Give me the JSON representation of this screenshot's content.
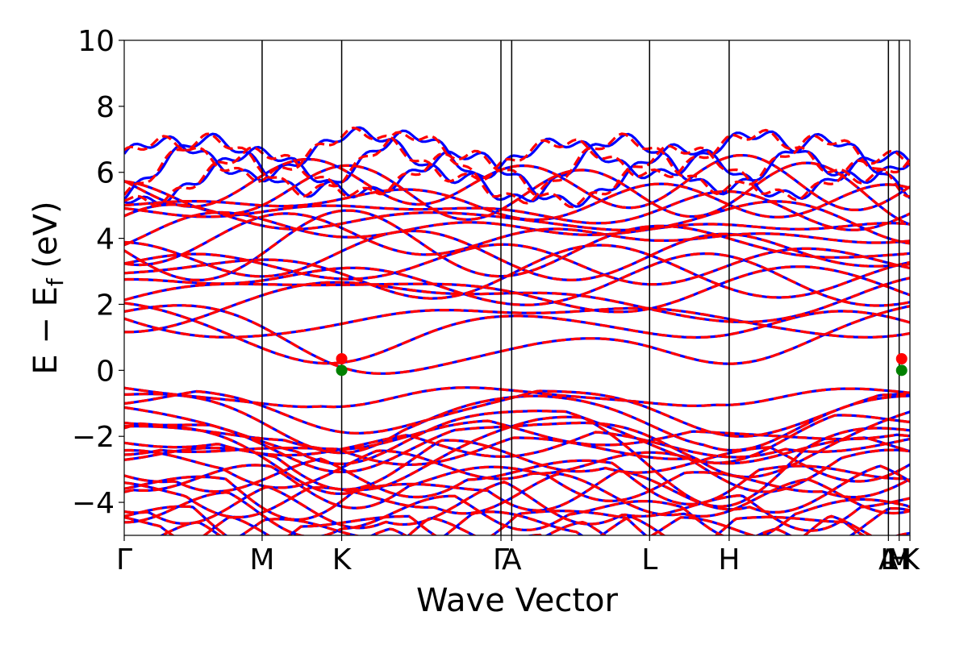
{
  "chart_data": {
    "type": "line",
    "xlabel": "Wave Vector",
    "ylabel_main": "E − E",
    "ylabel_sub": "f",
    "ylabel_unit": " (eV)",
    "ylim": [
      -5,
      10
    ],
    "yticks": [
      -4,
      -2,
      0,
      2,
      4,
      6,
      8,
      10
    ],
    "ytick_labels": [
      "−4",
      "−2",
      "0",
      "2",
      "4",
      "6",
      "8",
      "10"
    ],
    "kpoints": [
      {
        "label": "Γ",
        "x": 0.0
      },
      {
        "label": "M",
        "x": 1.0
      },
      {
        "label": "K",
        "x": 1.577
      },
      {
        "label": "Γ",
        "x": 2.732
      },
      {
        "label": "A",
        "x": 2.81
      },
      {
        "label": "L",
        "x": 3.81
      },
      {
        "label": "H",
        "x": 4.387
      },
      {
        "label": "A",
        "x": 5.542
      },
      {
        "label": "L",
        "x": 5.542
      },
      {
        "label": "M",
        "x": 5.62
      },
      {
        "label": "H",
        "x": 5.62
      },
      {
        "label": "K",
        "x": 5.698
      }
    ],
    "xlim": [
      0,
      5.698
    ],
    "series": [
      {
        "color": "#0000ff",
        "style": "solid"
      },
      {
        "color": "#ff0000",
        "style": "dashed"
      }
    ],
    "band_edges": {
      "vbm": {
        "k": 1.577,
        "energy": 0.0,
        "color": "#008000"
      },
      "cbm": {
        "k": 1.577,
        "energy": 0.35,
        "color": "#ff0000"
      }
    },
    "grid": false,
    "legend": "none"
  }
}
